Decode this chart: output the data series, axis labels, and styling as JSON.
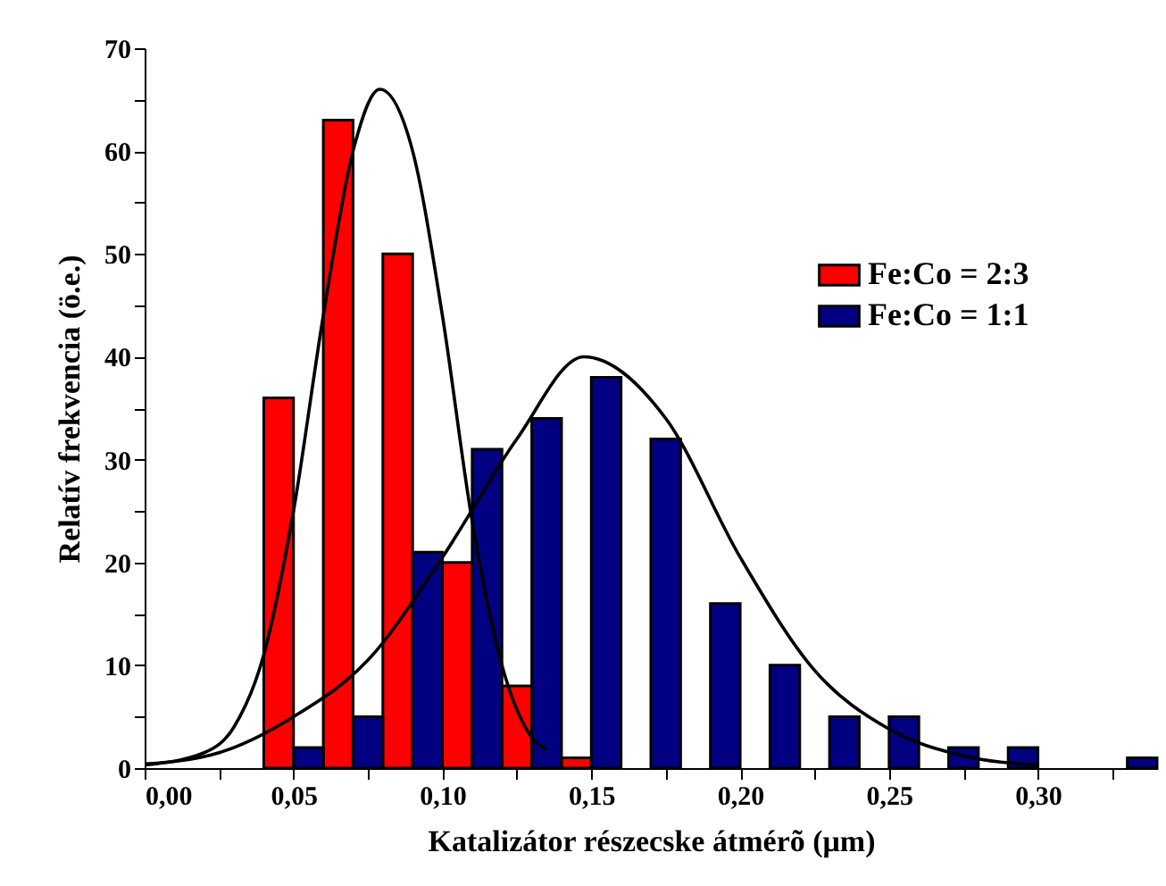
{
  "chart_data": {
    "type": "bar",
    "xlabel": "Katalizátor részecske átmérõ (μm)",
    "ylabel": "Relatív frekvencia (ö.e.)",
    "xlim": [
      0,
      0.34
    ],
    "ylim": [
      0,
      70
    ],
    "xticks": [
      {
        "value": 0,
        "label": "0,00"
      },
      {
        "value": 0.025,
        "label": null
      },
      {
        "value": 0.05,
        "label": "0,05"
      },
      {
        "value": 0.075,
        "label": null
      },
      {
        "value": 0.1,
        "label": "0,10"
      },
      {
        "value": 0.125,
        "label": null
      },
      {
        "value": 0.15,
        "label": "0,15"
      },
      {
        "value": 0.175,
        "label": null
      },
      {
        "value": 0.2,
        "label": "0,20"
      },
      {
        "value": 0.225,
        "label": null
      },
      {
        "value": 0.25,
        "label": "0,25"
      },
      {
        "value": 0.275,
        "label": null
      },
      {
        "value": 0.3,
        "label": "0,30"
      },
      {
        "value": 0.325,
        "label": null
      }
    ],
    "yticks": [
      0,
      {
        "value": 5,
        "label": null
      },
      10,
      {
        "value": 15,
        "label": null
      },
      20,
      {
        "value": 25,
        "label": null
      },
      30,
      {
        "value": 35,
        "label": null
      },
      40,
      {
        "value": 45,
        "label": null
      },
      50,
      {
        "value": 55,
        "label": null
      },
      60,
      {
        "value": 65,
        "label": null
      },
      70
    ],
    "legend": "top right",
    "series": [
      {
        "name": "Fe:Co = 2:3",
        "color": "#ff0000",
        "x": [
          0.045,
          0.065,
          0.085,
          0.105,
          0.125,
          0.145
        ],
        "values": [
          36,
          63,
          50,
          20,
          8,
          1
        ]
      },
      {
        "name": "Fe:Co = 1:1",
        "color": "#000080",
        "x": [
          0.055,
          0.075,
          0.095,
          0.115,
          0.135,
          0.155,
          0.175,
          0.195,
          0.215,
          0.235,
          0.255,
          0.275,
          0.295,
          0.335
        ],
        "values": [
          2,
          5,
          21,
          31,
          34,
          38,
          32,
          16,
          10,
          5,
          5,
          2,
          2,
          1
        ]
      },
      {
        "type": "line",
        "color": "#000000",
        "marker": "none",
        "x": [
          0,
          0.02,
          0.03,
          0.04,
          0.05,
          0.06,
          0.07,
          0.079,
          0.09,
          0.1,
          0.11,
          0.12,
          0.13,
          0.135
        ],
        "values": [
          0.3,
          1.5,
          4,
          11,
          25,
          44,
          60,
          66,
          60,
          44,
          24,
          10,
          3,
          1.8
        ]
      },
      {
        "type": "line",
        "color": "#000000",
        "marker": "none",
        "x": [
          0,
          0.025,
          0.05,
          0.075,
          0.1,
          0.125,
          0.1475,
          0.175,
          0.2,
          0.225,
          0.25,
          0.275,
          0.3
        ],
        "values": [
          0.4,
          1.5,
          5,
          10.5,
          20.5,
          32,
          40,
          34,
          20.5,
          9.5,
          3.8,
          1.2,
          0.3
        ]
      }
    ]
  }
}
